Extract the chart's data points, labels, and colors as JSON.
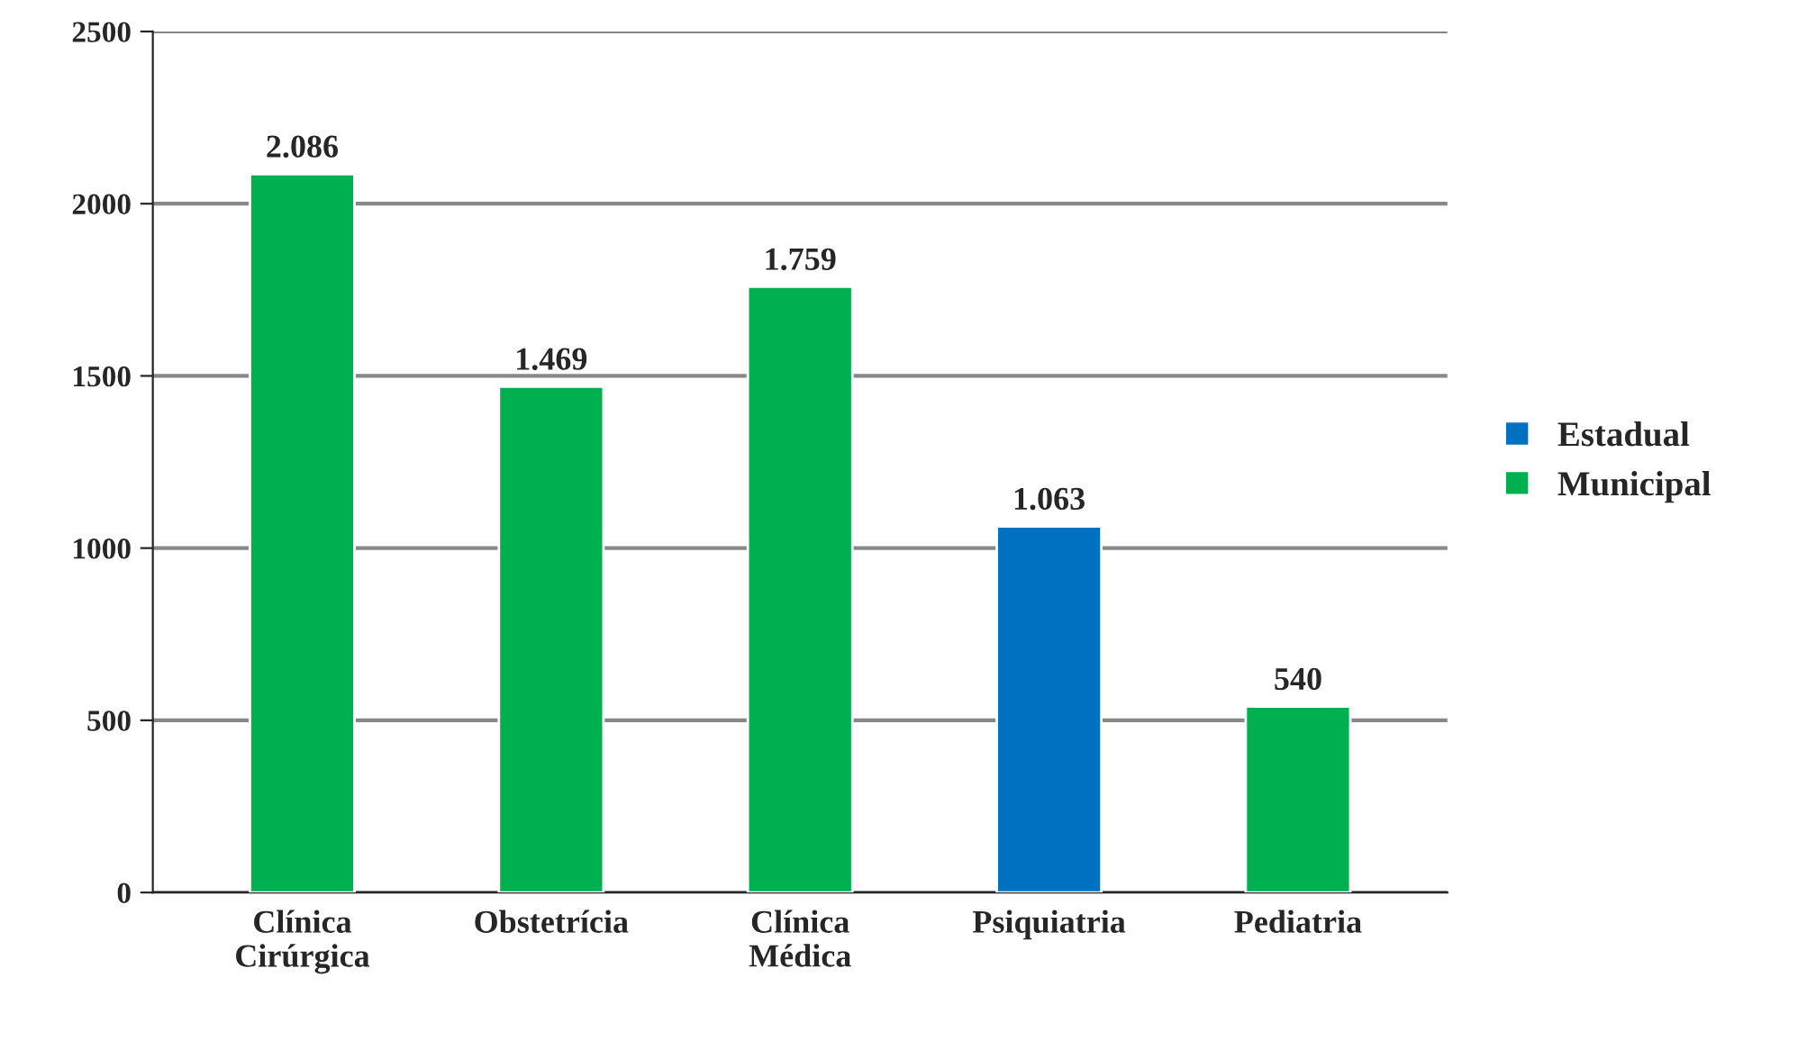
{
  "chart_data": {
    "type": "bar",
    "categories": [
      "Clínica Cirúrgica",
      "Obstetrícia",
      "Clínica Médica",
      "Psiquiatria",
      "Pediatria"
    ],
    "series": [
      {
        "name": "Estadual",
        "color": "#0070c0",
        "values": [
          null,
          null,
          null,
          1063,
          null
        ],
        "value_labels": [
          null,
          null,
          null,
          "1.063",
          null
        ]
      },
      {
        "name": "Municipal",
        "color": "#00b050",
        "values": [
          2086,
          1469,
          1759,
          null,
          540
        ],
        "value_labels": [
          "2.086",
          "1.469",
          "1.759",
          null,
          "540"
        ]
      }
    ],
    "ylim": [
      0,
      2500
    ],
    "yticks": [
      0,
      500,
      1000,
      1500,
      2000,
      2500
    ],
    "grid": "y",
    "legend": "right"
  }
}
